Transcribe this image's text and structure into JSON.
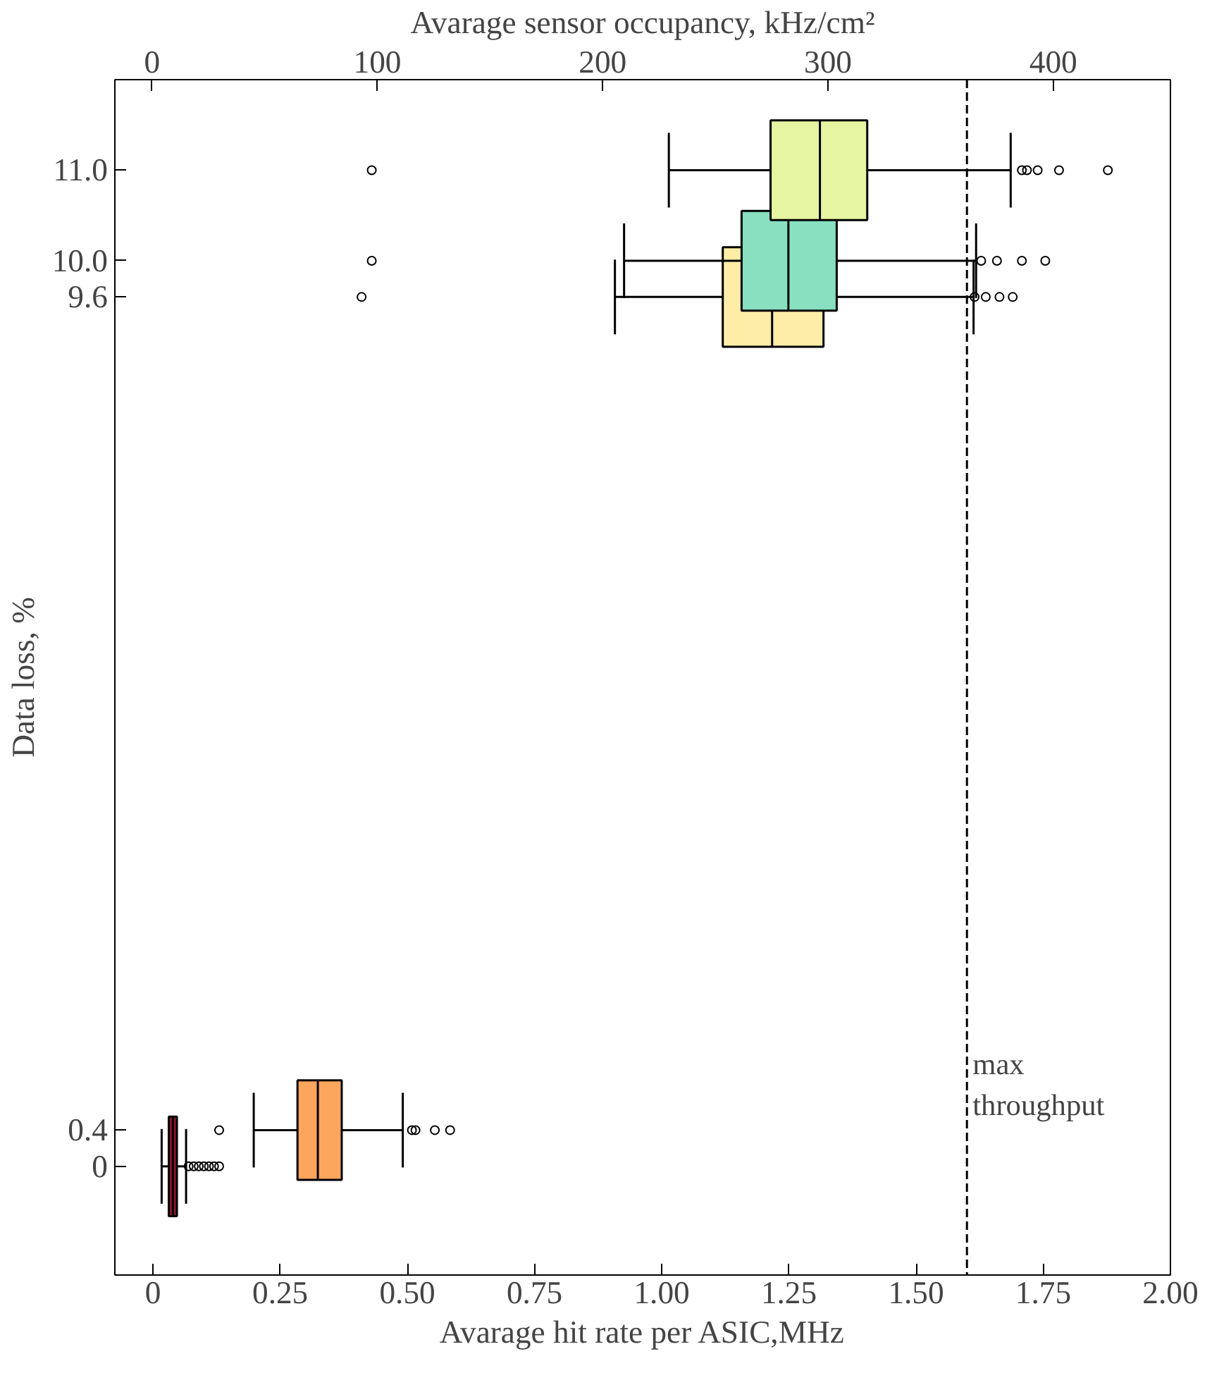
{
  "chart_data": {
    "type": "box",
    "orientation": "horizontal",
    "xlabel": "Avarage hit rate per ASIC,MHz",
    "ylabel": "Data loss, %",
    "x2label": "Avarage sensor occupancy, kHz/cm²",
    "x": [
      0,
      0.4,
      9.6,
      10.0,
      11.0
    ],
    "colors": [
      "#8b1a2e",
      "#fca55d",
      "#feeda6",
      "#88e0c0",
      "#e6f5a2"
    ],
    "boxes": [
      {
        "low": 0.017,
        "q1": 0.031,
        "median": 0.039,
        "q3": 0.047,
        "high": 0.065,
        "outliers": [
          0.07,
          0.08,
          0.09,
          0.1,
          0.11,
          0.12,
          0.13
        ]
      },
      {
        "low": 0.198,
        "q1": 0.284,
        "median": 0.324,
        "q3": 0.371,
        "high": 0.491,
        "outliers": [
          0.13,
          0.509,
          0.516,
          0.554,
          0.584
        ]
      },
      {
        "low": 0.908,
        "q1": 1.12,
        "median": 1.217,
        "q3": 1.318,
        "high": 1.613,
        "outliers": [
          0.41,
          1.615,
          1.637,
          1.664,
          1.69
        ]
      },
      {
        "low": 0.926,
        "q1": 1.157,
        "median": 1.249,
        "q3": 1.344,
        "high": 1.618,
        "outliers": [
          0.43,
          1.628,
          1.659,
          1.708,
          1.754
        ]
      },
      {
        "low": 1.014,
        "q1": 1.214,
        "median": 1.311,
        "q3": 1.404,
        "high": 1.686,
        "outliers": [
          0.43,
          1.708,
          1.718,
          1.739,
          1.781,
          1.877
        ]
      }
    ],
    "xlim": [
      -0.075,
      2.0
    ],
    "xticks": [
      0,
      0.25,
      {
        "value": 0.5,
        "label": "0.50"
      },
      0.75,
      {
        "value": 1.0,
        "label": "1.00"
      },
      1.25,
      {
        "value": 1.5,
        "label": "1.50"
      },
      1.75,
      {
        "value": 2.0,
        "label": "2.00"
      }
    ],
    "x2lim": [
      -16.5,
      452
    ],
    "x2ticks": [
      0,
      100,
      200,
      300,
      400
    ],
    "ylim": [
      -1.2,
      12
    ],
    "yticks": [
      0,
      0.4,
      9.6,
      {
        "value": 10.0,
        "label": "10.0"
      },
      {
        "value": 11.0,
        "label": "11.0"
      }
    ],
    "ref_lines": [
      {
        "axis": "x",
        "value": 1.6,
        "label": "max throughput",
        "line_style": "dashed",
        "color": "#000000"
      }
    ],
    "grid": false
  }
}
